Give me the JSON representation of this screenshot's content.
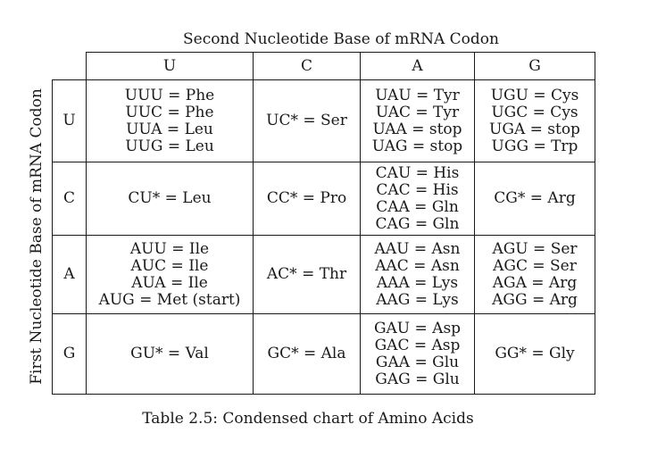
{
  "top_title": "Second Nucleotide Base of mRNA Codon",
  "side_title": "First Nucleotide Base of mRNA Codon",
  "columns": [
    "U",
    "C",
    "A",
    "G"
  ],
  "rows": [
    {
      "label": "U",
      "cells": [
        [
          "UUU = Phe",
          "UUC = Phe",
          "UUA = Leu",
          "UUG = Leu"
        ],
        [
          "UC* = Ser"
        ],
        [
          "UAU = Tyr",
          "UAC = Tyr",
          "UAA = stop",
          "UAG = stop"
        ],
        [
          "UGU = Cys",
          "UGC = Cys",
          "UGA = stop",
          "UGG = Trp"
        ]
      ]
    },
    {
      "label": "C",
      "cells": [
        [
          "CU* = Leu"
        ],
        [
          "CC* = Pro"
        ],
        [
          "CAU = His",
          "CAC = His",
          "CAA = Gln",
          "CAG = Gln"
        ],
        [
          "CG* = Arg"
        ]
      ]
    },
    {
      "label": "A",
      "cells": [
        [
          "AUU = Ile",
          "AUC = Ile",
          "AUA = Ile",
          "AUG = Met (start)"
        ],
        [
          "AC* = Thr"
        ],
        [
          "AAU = Asn",
          "AAC = Asn",
          "AAA = Lys",
          "AAG = Lys"
        ],
        [
          "AGU = Ser",
          "AGC = Ser",
          "AGA = Arg",
          "AGG = Arg"
        ]
      ]
    },
    {
      "label": "G",
      "cells": [
        [
          "GU* = Val"
        ],
        [
          "GC* = Ala"
        ],
        [
          "GAU = Asp",
          "GAC = Asp",
          "GAA = Glu",
          "GAG = Glu"
        ],
        [
          "GG* = Gly"
        ]
      ]
    }
  ],
  "caption": "Table 2.5: Condensed chart of Amino Acids"
}
